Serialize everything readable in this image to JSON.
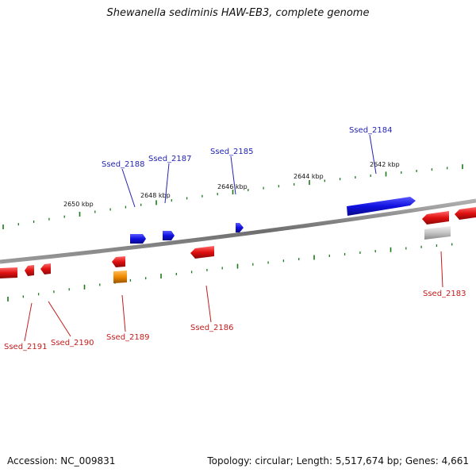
{
  "title": "Shewanella sediminis HAW-EB3, complete genome",
  "footer": {
    "accession": "Accession: NC_009831",
    "summary": "Topology: circular; Length: 5,517,674 bp; Genes: 4,661"
  },
  "colors": {
    "forward_gene": "#1010e0",
    "reverse_gene": "#e01010",
    "orange_gene": "#f08a00",
    "gray_gene": "#bdbdbd",
    "tick": "#1a7a1a",
    "backbone": "#808080"
  },
  "scale_labels": [
    "2650 kbp",
    "2648 kbp",
    "2646 kbp",
    "2644 kbp",
    "2642 kbp"
  ],
  "genes_top": [
    {
      "label": "Ssed_2188"
    },
    {
      "label": "Ssed_2187"
    },
    {
      "label": "Ssed_2185"
    },
    {
      "label": "Ssed_2184"
    }
  ],
  "genes_bottom": [
    {
      "label": "Ssed_2191"
    },
    {
      "label": "Ssed_2190"
    },
    {
      "label": "Ssed_2189"
    },
    {
      "label": "Ssed_2186"
    },
    {
      "label": "Ssed_2183"
    }
  ]
}
